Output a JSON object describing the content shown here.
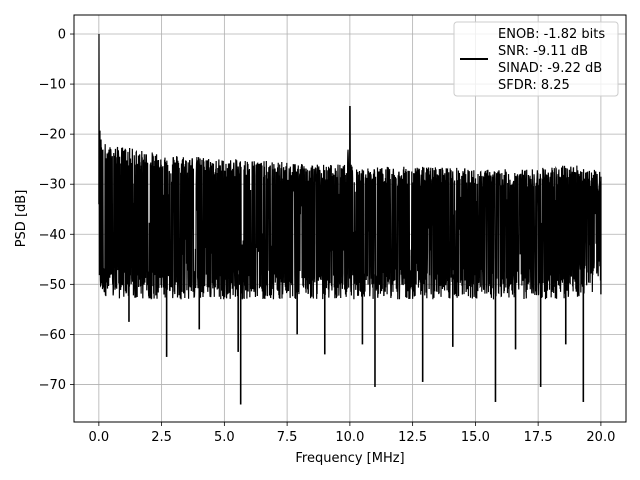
{
  "chart_data": {
    "type": "line",
    "title": "",
    "xlabel": "Frequency [MHz]",
    "ylabel": "PSD [dB]",
    "xlim": [
      -0.99,
      21.0
    ],
    "ylim": [
      -77.5,
      3.8
    ],
    "xticks": [
      0.0,
      2.5,
      5.0,
      7.5,
      10.0,
      12.5,
      15.0,
      17.5,
      20.0
    ],
    "xtick_labels": [
      "0.0",
      "2.5",
      "5.0",
      "7.5",
      "10.0",
      "12.5",
      "15.0",
      "17.5",
      "20.0"
    ],
    "yticks": [
      0,
      -10,
      -20,
      -30,
      -40,
      -50,
      -60,
      -70
    ],
    "ytick_labels": [
      "0",
      "−10",
      "−20",
      "−30",
      "−40",
      "−50",
      "−60",
      "−70"
    ],
    "grid": true,
    "legend_position": "top-right",
    "line_color": "#000000",
    "legend": [
      "ENOB: -1.82 bits",
      "SNR: -9.11 dB",
      "SINAD: -9.22 dB",
      "SFDR: 8.25"
    ],
    "series": [
      {
        "x": [
          0.0,
          0.01,
          0.02,
          0.05,
          0.1,
          0.2,
          0.3,
          0.5,
          1.0,
          2.0,
          3.0,
          4.0,
          5.0,
          6.0,
          7.0,
          8.0,
          9.0,
          9.9,
          10.0,
          10.1,
          11.0,
          12.0,
          13.0,
          14.0,
          15.0,
          16.0,
          17.0,
          18.0,
          19.0,
          20.0
        ],
        "y": [
          0,
          -12,
          -17,
          -21,
          -22,
          -23,
          -23.5,
          -24,
          -24,
          -25,
          -25.5,
          -26,
          -26.5,
          -26.5,
          -27,
          -27,
          -27.5,
          -27.5,
          -14.5,
          -28,
          -28,
          -28,
          -28,
          -28,
          -28.5,
          -28.5,
          -28.5,
          -28,
          -27.5,
          -29
        ],
        "noise_floor_low": [
          -45,
          -47,
          -48,
          -49,
          -50,
          -50,
          -50.5,
          -51,
          -51,
          -51,
          -51,
          -51,
          -51,
          -51,
          -51,
          -51,
          -51,
          -51,
          -51,
          -51,
          -51,
          -51,
          -51,
          -51,
          -51,
          -51,
          -51,
          -51,
          -51,
          -49
        ],
        "deep_dips": [
          {
            "x": 2.7,
            "y": -64.5
          },
          {
            "x": 5.55,
            "y": -63.5
          },
          {
            "x": 5.65,
            "y": -74
          },
          {
            "x": 11.0,
            "y": -70.5
          },
          {
            "x": 12.9,
            "y": -69.5
          },
          {
            "x": 15.8,
            "y": -73.5
          },
          {
            "x": 17.6,
            "y": -70.5
          },
          {
            "x": 19.3,
            "y": -73.5
          },
          {
            "x": 4.0,
            "y": -59
          },
          {
            "x": 9.0,
            "y": -64
          },
          {
            "x": 7.9,
            "y": -60
          },
          {
            "x": 10.5,
            "y": -62
          },
          {
            "x": 14.1,
            "y": -62.5
          },
          {
            "x": 16.6,
            "y": -63
          },
          {
            "x": 18.6,
            "y": -62
          },
          {
            "x": 1.2,
            "y": -57.5
          }
        ]
      }
    ]
  }
}
